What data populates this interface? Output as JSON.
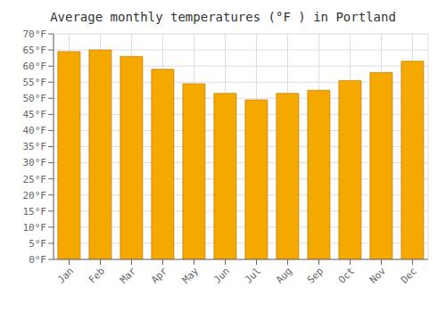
{
  "chart_data": {
    "type": "bar",
    "title": "Average monthly temperatures (°F ) in Portland",
    "categories": [
      "Jan",
      "Feb",
      "Mar",
      "Apr",
      "May",
      "Jun",
      "Jul",
      "Aug",
      "Sep",
      "Oct",
      "Nov",
      "Dec"
    ],
    "values": [
      64.5,
      65.0,
      63.0,
      59.0,
      54.5,
      51.5,
      49.5,
      51.5,
      52.5,
      55.5,
      58.0,
      61.5
    ],
    "color": "#F5A800",
    "ylim": [
      0,
      70
    ],
    "yticks": [
      {
        "value": 0,
        "label": "0°F"
      },
      {
        "value": 5,
        "label": "5°F"
      },
      {
        "value": 10,
        "label": "10°F"
      },
      {
        "value": 15,
        "label": "15°F"
      },
      {
        "value": 20,
        "label": "20°F"
      },
      {
        "value": 25,
        "label": "25°F"
      },
      {
        "value": 30,
        "label": "30°F"
      },
      {
        "value": 35,
        "label": "35°F"
      },
      {
        "value": 40,
        "label": "40°F"
      },
      {
        "value": 45,
        "label": "45°F"
      },
      {
        "value": 50,
        "label": "50°F"
      },
      {
        "value": 55,
        "label": "55°F"
      },
      {
        "value": 60,
        "label": "60°F"
      },
      {
        "value": 65,
        "label": "65°F"
      },
      {
        "value": 70,
        "label": "70°F"
      }
    ],
    "grid": true
  }
}
